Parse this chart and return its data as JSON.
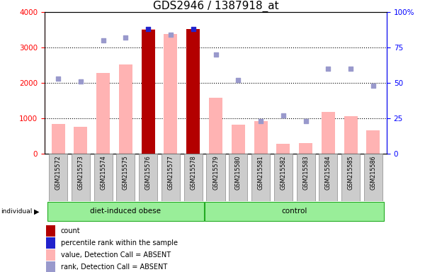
{
  "title": "GDS2946 / 1387918_at",
  "samples": [
    "GSM215572",
    "GSM215573",
    "GSM215574",
    "GSM215575",
    "GSM215576",
    "GSM215577",
    "GSM215578",
    "GSM215579",
    "GSM215580",
    "GSM215581",
    "GSM215582",
    "GSM215583",
    "GSM215584",
    "GSM215585",
    "GSM215586"
  ],
  "bar_values": [
    850,
    760,
    2280,
    2520,
    3520,
    3380,
    3520,
    1580,
    820,
    920,
    280,
    300,
    1180,
    1070,
    660
  ],
  "count_bars": [
    0,
    0,
    0,
    0,
    3500,
    0,
    3520,
    0,
    0,
    0,
    0,
    0,
    0,
    0,
    0
  ],
  "rank_pct": [
    53,
    51,
    80,
    82,
    88,
    84,
    88,
    70,
    52,
    23,
    27,
    23,
    60,
    60,
    48
  ],
  "ylim_left": [
    0,
    4000
  ],
  "ylim_right": [
    0,
    100
  ],
  "yticks_left": [
    0,
    1000,
    2000,
    3000,
    4000
  ],
  "yticks_right": [
    0,
    25,
    50,
    75,
    100
  ],
  "bar_color": "#ffb3b3",
  "count_color": "#b30000",
  "rank_dot_color": "#9999cc",
  "blue_dot_color": "#2222cc",
  "green_group": "#99ee99",
  "gray_sample": "#cccccc",
  "bg_plot": "#ffffff",
  "title_fontsize": 11,
  "group_defs": [
    {
      "label": "diet-induced obese",
      "start": 0,
      "end": 6
    },
    {
      "label": "control",
      "start": 7,
      "end": 14
    }
  ],
  "legend_items": [
    {
      "color": "#b30000",
      "label": "count",
      "shape": "square"
    },
    {
      "color": "#2222cc",
      "label": "percentile rank within the sample",
      "shape": "square"
    },
    {
      "color": "#ffb3b3",
      "label": "value, Detection Call = ABSENT",
      "shape": "bar"
    },
    {
      "color": "#9999cc",
      "label": "rank, Detection Call = ABSENT",
      "shape": "square"
    }
  ]
}
